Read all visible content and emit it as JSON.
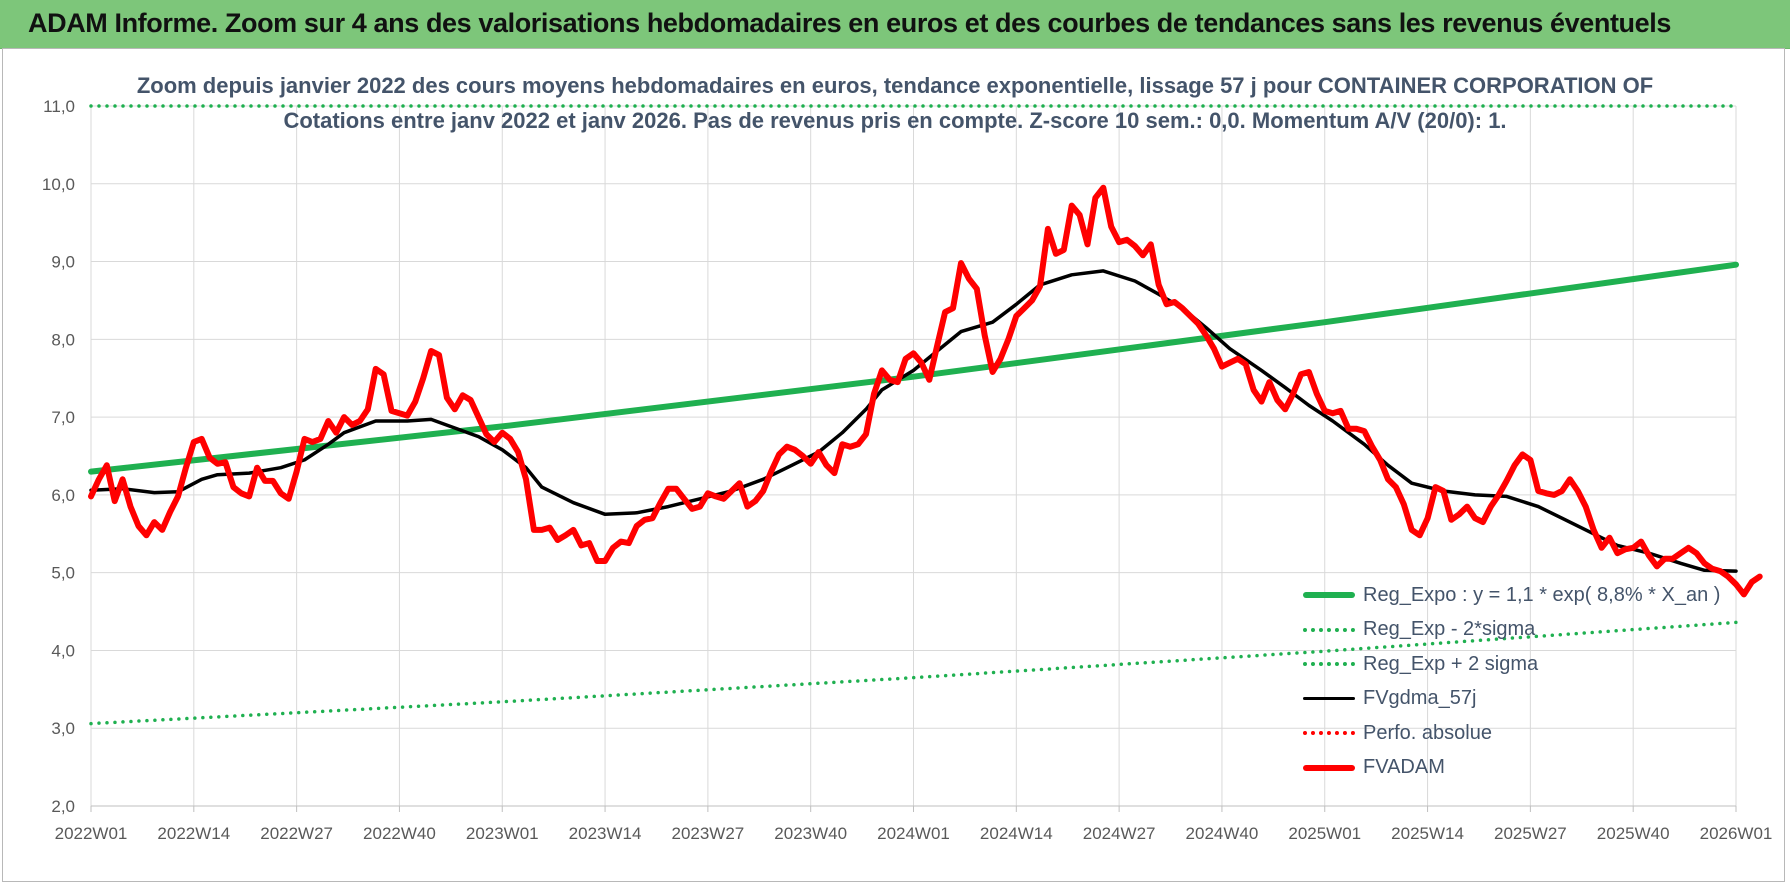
{
  "header": {
    "title": "ADAM Informe. Zoom sur 4 ans des valorisations hebdomadaires en euros et des courbes de tendances sans les revenus éventuels"
  },
  "chart_data": {
    "type": "line",
    "title_line1": "Zoom depuis janvier 2022 des cours moyens hebdomadaires en euros, tendance exponentielle, lissage 57 j pour CONTAINER CORPORATION OF",
    "title_line2": "Cotations entre janv 2022 et janv 2026. Pas de revenus pris en compte. Z-score 10 sem.: 0,0. Momentum A/V (20/0): 1.",
    "ylim": [
      2.0,
      11.0
    ],
    "y_ticks": [
      "2,0",
      "3,0",
      "4,0",
      "5,0",
      "6,0",
      "7,0",
      "8,0",
      "9,0",
      "10,0",
      "11,0"
    ],
    "x_ticks": [
      "2022W01",
      "2022W14",
      "2022W27",
      "2022W40",
      "2023W01",
      "2023W14",
      "2023W27",
      "2023W40",
      "2024W01",
      "2024W14",
      "2024W27",
      "2024W40",
      "2025W01",
      "2025W14",
      "2025W27",
      "2025W40",
      "2026W01"
    ],
    "x_range_weeks": [
      0,
      208
    ],
    "grid": true,
    "legend_position": "bottom-right",
    "series": [
      {
        "name": "Reg_Expo : y = 1,1 * exp( 8,8% *  X_an )",
        "style": "solid-thick",
        "color": "#1fb050",
        "points": [
          [
            0,
            6.3
          ],
          [
            52,
            6.88
          ],
          [
            104,
            7.52
          ],
          [
            156,
            8.22
          ],
          [
            208,
            8.96
          ]
        ]
      },
      {
        "name": "Reg_Exp - 2*sigma",
        "style": "dotted",
        "color": "#1fb050",
        "points": [
          [
            0,
            3.06
          ],
          [
            52,
            3.34
          ],
          [
            104,
            3.65
          ],
          [
            156,
            3.99
          ],
          [
            208,
            4.36
          ]
        ]
      },
      {
        "name": "Reg_Exp + 2 sigma",
        "style": "dotted",
        "color": "#1fb050",
        "points": [
          [
            0,
            11.0
          ],
          [
            208,
            11.0
          ]
        ]
      },
      {
        "name": "FVgdma_57j",
        "style": "solid",
        "color": "#000000",
        "points": [
          [
            0,
            6.06
          ],
          [
            4,
            6.08
          ],
          [
            8,
            6.03
          ],
          [
            11,
            6.04
          ],
          [
            14,
            6.2
          ],
          [
            16,
            6.26
          ],
          [
            20,
            6.28
          ],
          [
            24,
            6.35
          ],
          [
            27,
            6.45
          ],
          [
            30,
            6.65
          ],
          [
            32,
            6.8
          ],
          [
            36,
            6.95
          ],
          [
            40,
            6.95
          ],
          [
            43,
            6.97
          ],
          [
            46,
            6.86
          ],
          [
            49,
            6.75
          ],
          [
            52,
            6.58
          ],
          [
            55,
            6.35
          ],
          [
            57,
            6.1
          ],
          [
            61,
            5.9
          ],
          [
            65,
            5.75
          ],
          [
            69,
            5.77
          ],
          [
            73,
            5.85
          ],
          [
            77,
            5.95
          ],
          [
            81,
            6.05
          ],
          [
            85,
            6.2
          ],
          [
            88,
            6.35
          ],
          [
            92,
            6.55
          ],
          [
            95,
            6.8
          ],
          [
            98,
            7.1
          ],
          [
            100,
            7.35
          ],
          [
            104,
            7.6
          ],
          [
            107,
            7.85
          ],
          [
            110,
            8.1
          ],
          [
            114,
            8.22
          ],
          [
            117,
            8.45
          ],
          [
            120,
            8.7
          ],
          [
            124,
            8.83
          ],
          [
            128,
            8.88
          ],
          [
            132,
            8.75
          ],
          [
            135,
            8.58
          ],
          [
            138,
            8.4
          ],
          [
            141,
            8.15
          ],
          [
            144,
            7.88
          ],
          [
            148,
            7.6
          ],
          [
            151,
            7.38
          ],
          [
            154,
            7.15
          ],
          [
            157,
            6.95
          ],
          [
            161,
            6.65
          ],
          [
            164,
            6.38
          ],
          [
            167,
            6.15
          ],
          [
            171,
            6.05
          ],
          [
            175,
            6.0
          ],
          [
            179,
            5.98
          ],
          [
            183,
            5.85
          ],
          [
            186,
            5.7
          ],
          [
            190,
            5.5
          ],
          [
            193,
            5.35
          ],
          [
            197,
            5.25
          ],
          [
            201,
            5.12
          ],
          [
            204,
            5.03
          ],
          [
            208,
            5.02
          ]
        ]
      },
      {
        "name": "Perfo. absolue",
        "style": "dotted",
        "color": "#ff0000",
        "points": []
      },
      {
        "name": "FVADAM",
        "style": "solid-thick",
        "color": "#ff0000",
        "points": [
          [
            0,
            5.98
          ],
          [
            1,
            6.2
          ],
          [
            2,
            6.38
          ],
          [
            3,
            5.92
          ],
          [
            4,
            6.2
          ],
          [
            5,
            5.85
          ],
          [
            6,
            5.6
          ],
          [
            7,
            5.48
          ],
          [
            8,
            5.65
          ],
          [
            9,
            5.55
          ],
          [
            10,
            5.78
          ],
          [
            11,
            5.98
          ],
          [
            12,
            6.35
          ],
          [
            13,
            6.68
          ],
          [
            14,
            6.72
          ],
          [
            15,
            6.48
          ],
          [
            16,
            6.4
          ],
          [
            17,
            6.42
          ],
          [
            18,
            6.1
          ],
          [
            19,
            6.02
          ],
          [
            20,
            5.98
          ],
          [
            21,
            6.35
          ],
          [
            22,
            6.18
          ],
          [
            23,
            6.18
          ],
          [
            24,
            6.02
          ],
          [
            25,
            5.95
          ],
          [
            26,
            6.3
          ],
          [
            27,
            6.72
          ],
          [
            28,
            6.68
          ],
          [
            29,
            6.72
          ],
          [
            30,
            6.95
          ],
          [
            31,
            6.8
          ],
          [
            32,
            7.0
          ],
          [
            33,
            6.9
          ],
          [
            34,
            6.95
          ],
          [
            35,
            7.1
          ],
          [
            36,
            7.62
          ],
          [
            37,
            7.55
          ],
          [
            38,
            7.08
          ],
          [
            39,
            7.05
          ],
          [
            40,
            7.02
          ],
          [
            41,
            7.2
          ],
          [
            42,
            7.5
          ],
          [
            43,
            7.85
          ],
          [
            44,
            7.8
          ],
          [
            45,
            7.25
          ],
          [
            46,
            7.1
          ],
          [
            47,
            7.28
          ],
          [
            48,
            7.22
          ],
          [
            49,
            7.0
          ],
          [
            50,
            6.78
          ],
          [
            51,
            6.68
          ],
          [
            52,
            6.8
          ],
          [
            53,
            6.72
          ],
          [
            54,
            6.55
          ],
          [
            55,
            6.2
          ],
          [
            56,
            5.55
          ],
          [
            57,
            5.55
          ],
          [
            58,
            5.58
          ],
          [
            59,
            5.42
          ],
          [
            60,
            5.48
          ],
          [
            61,
            5.55
          ],
          [
            62,
            5.35
          ],
          [
            63,
            5.38
          ],
          [
            64,
            5.15
          ],
          [
            65,
            5.15
          ],
          [
            66,
            5.32
          ],
          [
            67,
            5.4
          ],
          [
            68,
            5.38
          ],
          [
            69,
            5.6
          ],
          [
            70,
            5.68
          ],
          [
            71,
            5.7
          ],
          [
            72,
            5.9
          ],
          [
            73,
            6.08
          ],
          [
            74,
            6.08
          ],
          [
            75,
            5.95
          ],
          [
            76,
            5.82
          ],
          [
            77,
            5.85
          ],
          [
            78,
            6.02
          ],
          [
            79,
            5.98
          ],
          [
            80,
            5.95
          ],
          [
            81,
            6.05
          ],
          [
            82,
            6.15
          ],
          [
            83,
            5.85
          ],
          [
            84,
            5.92
          ],
          [
            85,
            6.05
          ],
          [
            86,
            6.3
          ],
          [
            87,
            6.52
          ],
          [
            88,
            6.62
          ],
          [
            89,
            6.58
          ],
          [
            90,
            6.5
          ],
          [
            91,
            6.4
          ],
          [
            92,
            6.55
          ],
          [
            93,
            6.38
          ],
          [
            94,
            6.28
          ],
          [
            95,
            6.65
          ],
          [
            96,
            6.62
          ],
          [
            97,
            6.65
          ],
          [
            98,
            6.78
          ],
          [
            99,
            7.3
          ],
          [
            100,
            7.6
          ],
          [
            101,
            7.48
          ],
          [
            102,
            7.45
          ],
          [
            103,
            7.75
          ],
          [
            104,
            7.82
          ],
          [
            105,
            7.7
          ],
          [
            106,
            7.48
          ],
          [
            107,
            7.92
          ],
          [
            108,
            8.35
          ],
          [
            109,
            8.4
          ],
          [
            110,
            8.98
          ],
          [
            111,
            8.78
          ],
          [
            112,
            8.65
          ],
          [
            113,
            8.05
          ],
          [
            114,
            7.58
          ],
          [
            115,
            7.75
          ],
          [
            116,
            8.0
          ],
          [
            117,
            8.3
          ],
          [
            118,
            8.4
          ],
          [
            119,
            8.5
          ],
          [
            120,
            8.68
          ],
          [
            121,
            9.42
          ],
          [
            122,
            9.1
          ],
          [
            123,
            9.15
          ],
          [
            124,
            9.72
          ],
          [
            125,
            9.6
          ],
          [
            126,
            9.22
          ],
          [
            127,
            9.82
          ],
          [
            128,
            9.95
          ],
          [
            129,
            9.45
          ],
          [
            130,
            9.25
          ],
          [
            131,
            9.28
          ],
          [
            132,
            9.2
          ],
          [
            133,
            9.08
          ],
          [
            134,
            9.22
          ],
          [
            135,
            8.7
          ],
          [
            136,
            8.45
          ],
          [
            137,
            8.48
          ],
          [
            138,
            8.4
          ],
          [
            139,
            8.3
          ],
          [
            140,
            8.2
          ],
          [
            141,
            8.05
          ],
          [
            142,
            7.88
          ],
          [
            143,
            7.65
          ],
          [
            144,
            7.7
          ],
          [
            145,
            7.75
          ],
          [
            146,
            7.68
          ],
          [
            147,
            7.35
          ],
          [
            148,
            7.2
          ],
          [
            149,
            7.45
          ],
          [
            150,
            7.22
          ],
          [
            151,
            7.1
          ],
          [
            152,
            7.3
          ],
          [
            153,
            7.55
          ],
          [
            154,
            7.58
          ],
          [
            155,
            7.3
          ],
          [
            156,
            7.08
          ],
          [
            157,
            7.05
          ],
          [
            158,
            7.08
          ],
          [
            159,
            6.85
          ],
          [
            160,
            6.85
          ],
          [
            161,
            6.82
          ],
          [
            162,
            6.62
          ],
          [
            163,
            6.45
          ],
          [
            164,
            6.2
          ],
          [
            165,
            6.1
          ],
          [
            166,
            5.88
          ],
          [
            167,
            5.55
          ],
          [
            168,
            5.48
          ],
          [
            169,
            5.7
          ],
          [
            170,
            6.1
          ],
          [
            171,
            6.05
          ],
          [
            172,
            5.68
          ],
          [
            173,
            5.75
          ],
          [
            174,
            5.85
          ],
          [
            175,
            5.7
          ],
          [
            176,
            5.65
          ],
          [
            177,
            5.85
          ],
          [
            178,
            6.0
          ],
          [
            179,
            6.18
          ],
          [
            180,
            6.38
          ],
          [
            181,
            6.52
          ],
          [
            182,
            6.45
          ],
          [
            183,
            6.05
          ],
          [
            184,
            6.02
          ],
          [
            185,
            6.0
          ],
          [
            186,
            6.05
          ],
          [
            187,
            6.2
          ],
          [
            188,
            6.05
          ],
          [
            189,
            5.85
          ],
          [
            190,
            5.55
          ],
          [
            191,
            5.32
          ],
          [
            192,
            5.45
          ],
          [
            193,
            5.25
          ],
          [
            194,
            5.3
          ],
          [
            195,
            5.32
          ],
          [
            196,
            5.4
          ],
          [
            197,
            5.22
          ],
          [
            198,
            5.08
          ],
          [
            199,
            5.18
          ],
          [
            200,
            5.18
          ],
          [
            201,
            5.25
          ],
          [
            202,
            5.32
          ],
          [
            203,
            5.25
          ],
          [
            204,
            5.12
          ],
          [
            205,
            5.05
          ],
          [
            206,
            5.02
          ],
          [
            207,
            4.95
          ],
          [
            208,
            4.85
          ],
          [
            209,
            4.72
          ],
          [
            210,
            4.88
          ],
          [
            211,
            4.95
          ]
        ]
      }
    ]
  }
}
